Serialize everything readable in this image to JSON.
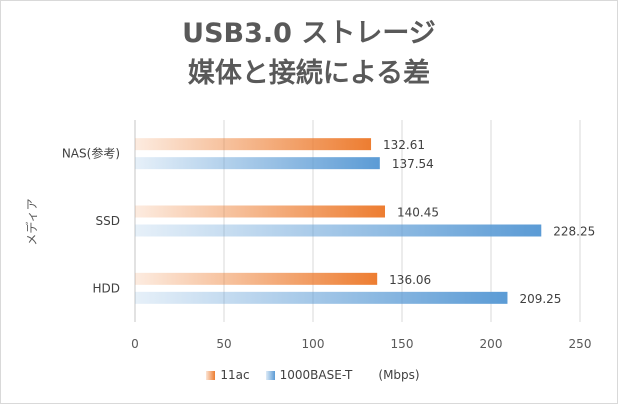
{
  "chart_data": {
    "type": "bar",
    "orientation": "horizontal",
    "title_lines": [
      "USB3.0 ストレージ",
      "媒体と接続による差"
    ],
    "ylabel": "メディア",
    "categories": [
      "NAS(参考)",
      "SSD",
      "HDD"
    ],
    "series": [
      {
        "name": "11ac",
        "color": "#ed7d31",
        "values": [
          132.61,
          140.45,
          136.06
        ]
      },
      {
        "name": "1000BASE-T",
        "color": "#5b9bd5",
        "values": [
          137.54,
          228.25,
          209.25
        ]
      }
    ],
    "xlim": [
      0,
      250
    ],
    "xticks": [
      0,
      50,
      100,
      150,
      200,
      250
    ],
    "grid": true,
    "legend_position": "bottom",
    "unit_note": "(Mbps)"
  }
}
